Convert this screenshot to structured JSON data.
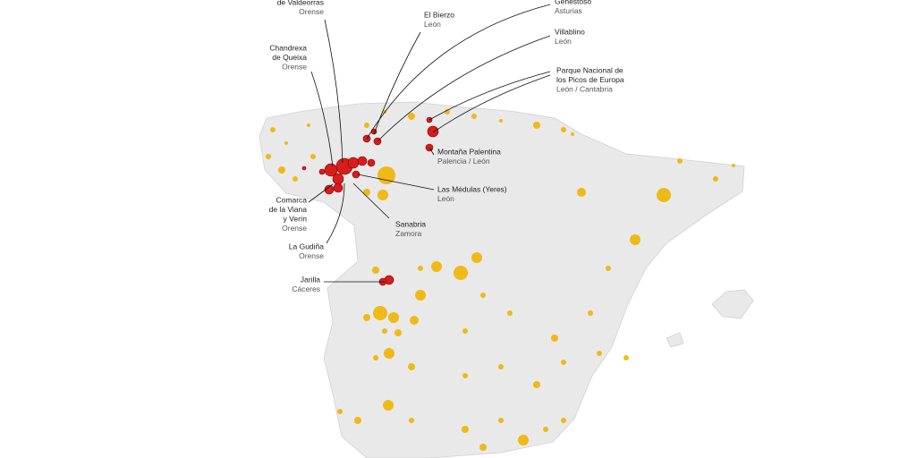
{
  "labels": [
    {
      "name": [
        "de Valdeorras"
      ],
      "region": "Orense"
    },
    {
      "name": [
        "El Bierzo"
      ],
      "region": "León"
    },
    {
      "name": [
        "Genestoso"
      ],
      "region": "Asturias"
    },
    {
      "name": [
        "Villablino"
      ],
      "region": "León"
    },
    {
      "name": [
        "Chandrexa",
        "de Queixa"
      ],
      "region": "Orense"
    },
    {
      "name": [
        "Parque Nacional de",
        "los Picos de Europa"
      ],
      "region": "León / Cantabria"
    },
    {
      "name": [
        "Montaña Palentina"
      ],
      "region": "Palencia / León"
    },
    {
      "name": [
        "Las Médulas (Yeres)"
      ],
      "region": "León"
    },
    {
      "name": [
        "Comarca",
        "de la Viana",
        "y Verín"
      ],
      "region": "Orense"
    },
    {
      "name": [
        "Sanabria"
      ],
      "region": "Zamora"
    },
    {
      "name": [
        "La Gudiña"
      ],
      "region": "Orense"
    },
    {
      "name": [
        "Jarilla"
      ],
      "region": "Cáceres"
    }
  ]
}
